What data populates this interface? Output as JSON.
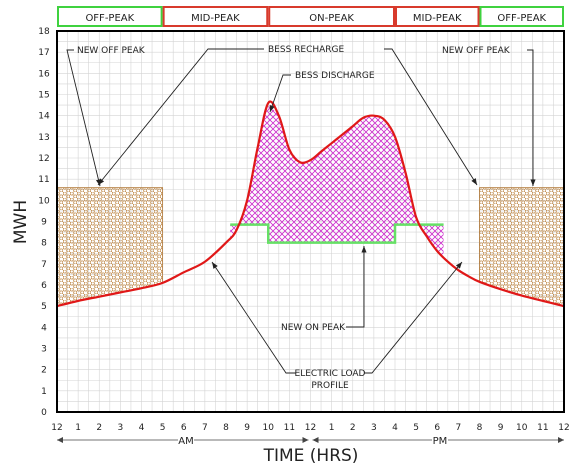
{
  "chart_data": {
    "type": "area",
    "xlabel": "TIME (HRS)",
    "ylabel": "MWH",
    "ylim": [
      0,
      18
    ],
    "xlim": [
      0,
      24
    ],
    "yticks": [
      0,
      1,
      2,
      3,
      4,
      5,
      6,
      7,
      8,
      9,
      10,
      11,
      12,
      13,
      14,
      15,
      16,
      17,
      18
    ],
    "xtick_labels": [
      "12",
      "1",
      "2",
      "3",
      "4",
      "5",
      "6",
      "7",
      "8",
      "9",
      "10",
      "11",
      "12",
      "1",
      "2",
      "3",
      "4",
      "5",
      "6",
      "7",
      "8",
      "9",
      "10",
      "11",
      "12"
    ],
    "am_label": "AM",
    "pm_label": "PM",
    "grid": true,
    "periods": [
      {
        "label": "OFF-PEAK",
        "start": 0,
        "end": 5,
        "color": "#3fd23f"
      },
      {
        "label": "MID-PEAK",
        "start": 5,
        "end": 10,
        "color": "#d83a2c"
      },
      {
        "label": "ON-PEAK",
        "start": 10,
        "end": 16,
        "color": "#d83a2c"
      },
      {
        "label": "MID-PEAK",
        "start": 16,
        "end": 20,
        "color": "#d83a2c"
      },
      {
        "label": "OFF-PEAK",
        "start": 20,
        "end": 24,
        "color": "#3fd23f"
      }
    ],
    "series": [
      {
        "name": "ELECTRIC LOAD PROFILE",
        "color": "#e01818",
        "x": [
          0,
          1,
          2,
          3,
          4,
          5,
          6,
          7,
          8,
          8.5,
          9,
          9.5,
          10,
          10.5,
          11,
          11.5,
          12,
          12.5,
          13,
          13.5,
          14,
          14.5,
          15,
          15.5,
          16,
          16.5,
          17,
          17.5,
          18,
          18.5,
          19,
          19.5,
          20,
          21,
          22,
          23,
          24
        ],
        "y": [
          5.0,
          5.25,
          5.45,
          5.65,
          5.85,
          6.1,
          6.6,
          7.1,
          8.0,
          8.6,
          10.0,
          12.5,
          14.6,
          14.0,
          12.4,
          11.8,
          11.9,
          12.3,
          12.7,
          13.1,
          13.5,
          13.9,
          14.0,
          13.8,
          13.0,
          11.3,
          9.2,
          8.3,
          7.6,
          7.1,
          6.7,
          6.4,
          6.15,
          5.8,
          5.5,
          5.25,
          5.0
        ]
      },
      {
        "name": "NEW ON PEAK",
        "color": "#66e066",
        "x": [
          8.2,
          10,
          10,
          16,
          16,
          18.3
        ],
        "y": [
          8.85,
          8.85,
          8.0,
          8.0,
          8.85,
          8.85
        ]
      }
    ],
    "blocks": [
      {
        "name": "NEW OFF PEAK",
        "start": 0,
        "end": 5,
        "top": 10.6
      },
      {
        "name": "NEW OFF PEAK",
        "start": 20,
        "end": 24,
        "top": 10.6
      }
    ],
    "annotations": [
      {
        "text": "NEW OFF PEAK",
        "role": "left"
      },
      {
        "text": "BESS RECHARGE",
        "role": "recharge"
      },
      {
        "text": "BESS DISCHARGE",
        "role": "discharge"
      },
      {
        "text": "NEW OFF PEAK",
        "role": "right"
      },
      {
        "text": "NEW ON PEAK",
        "role": "onpeak"
      },
      {
        "text": "ELECTRIC LOAD",
        "role": "load1"
      },
      {
        "text": "PROFILE",
        "role": "load2"
      }
    ],
    "colors": {
      "load": "#e01818",
      "new_on_peak": "#66e066",
      "discharge_fill": "#cc2ccc",
      "off_peak_fill": "#c08a4a",
      "grid": "#d4d4d4"
    }
  }
}
